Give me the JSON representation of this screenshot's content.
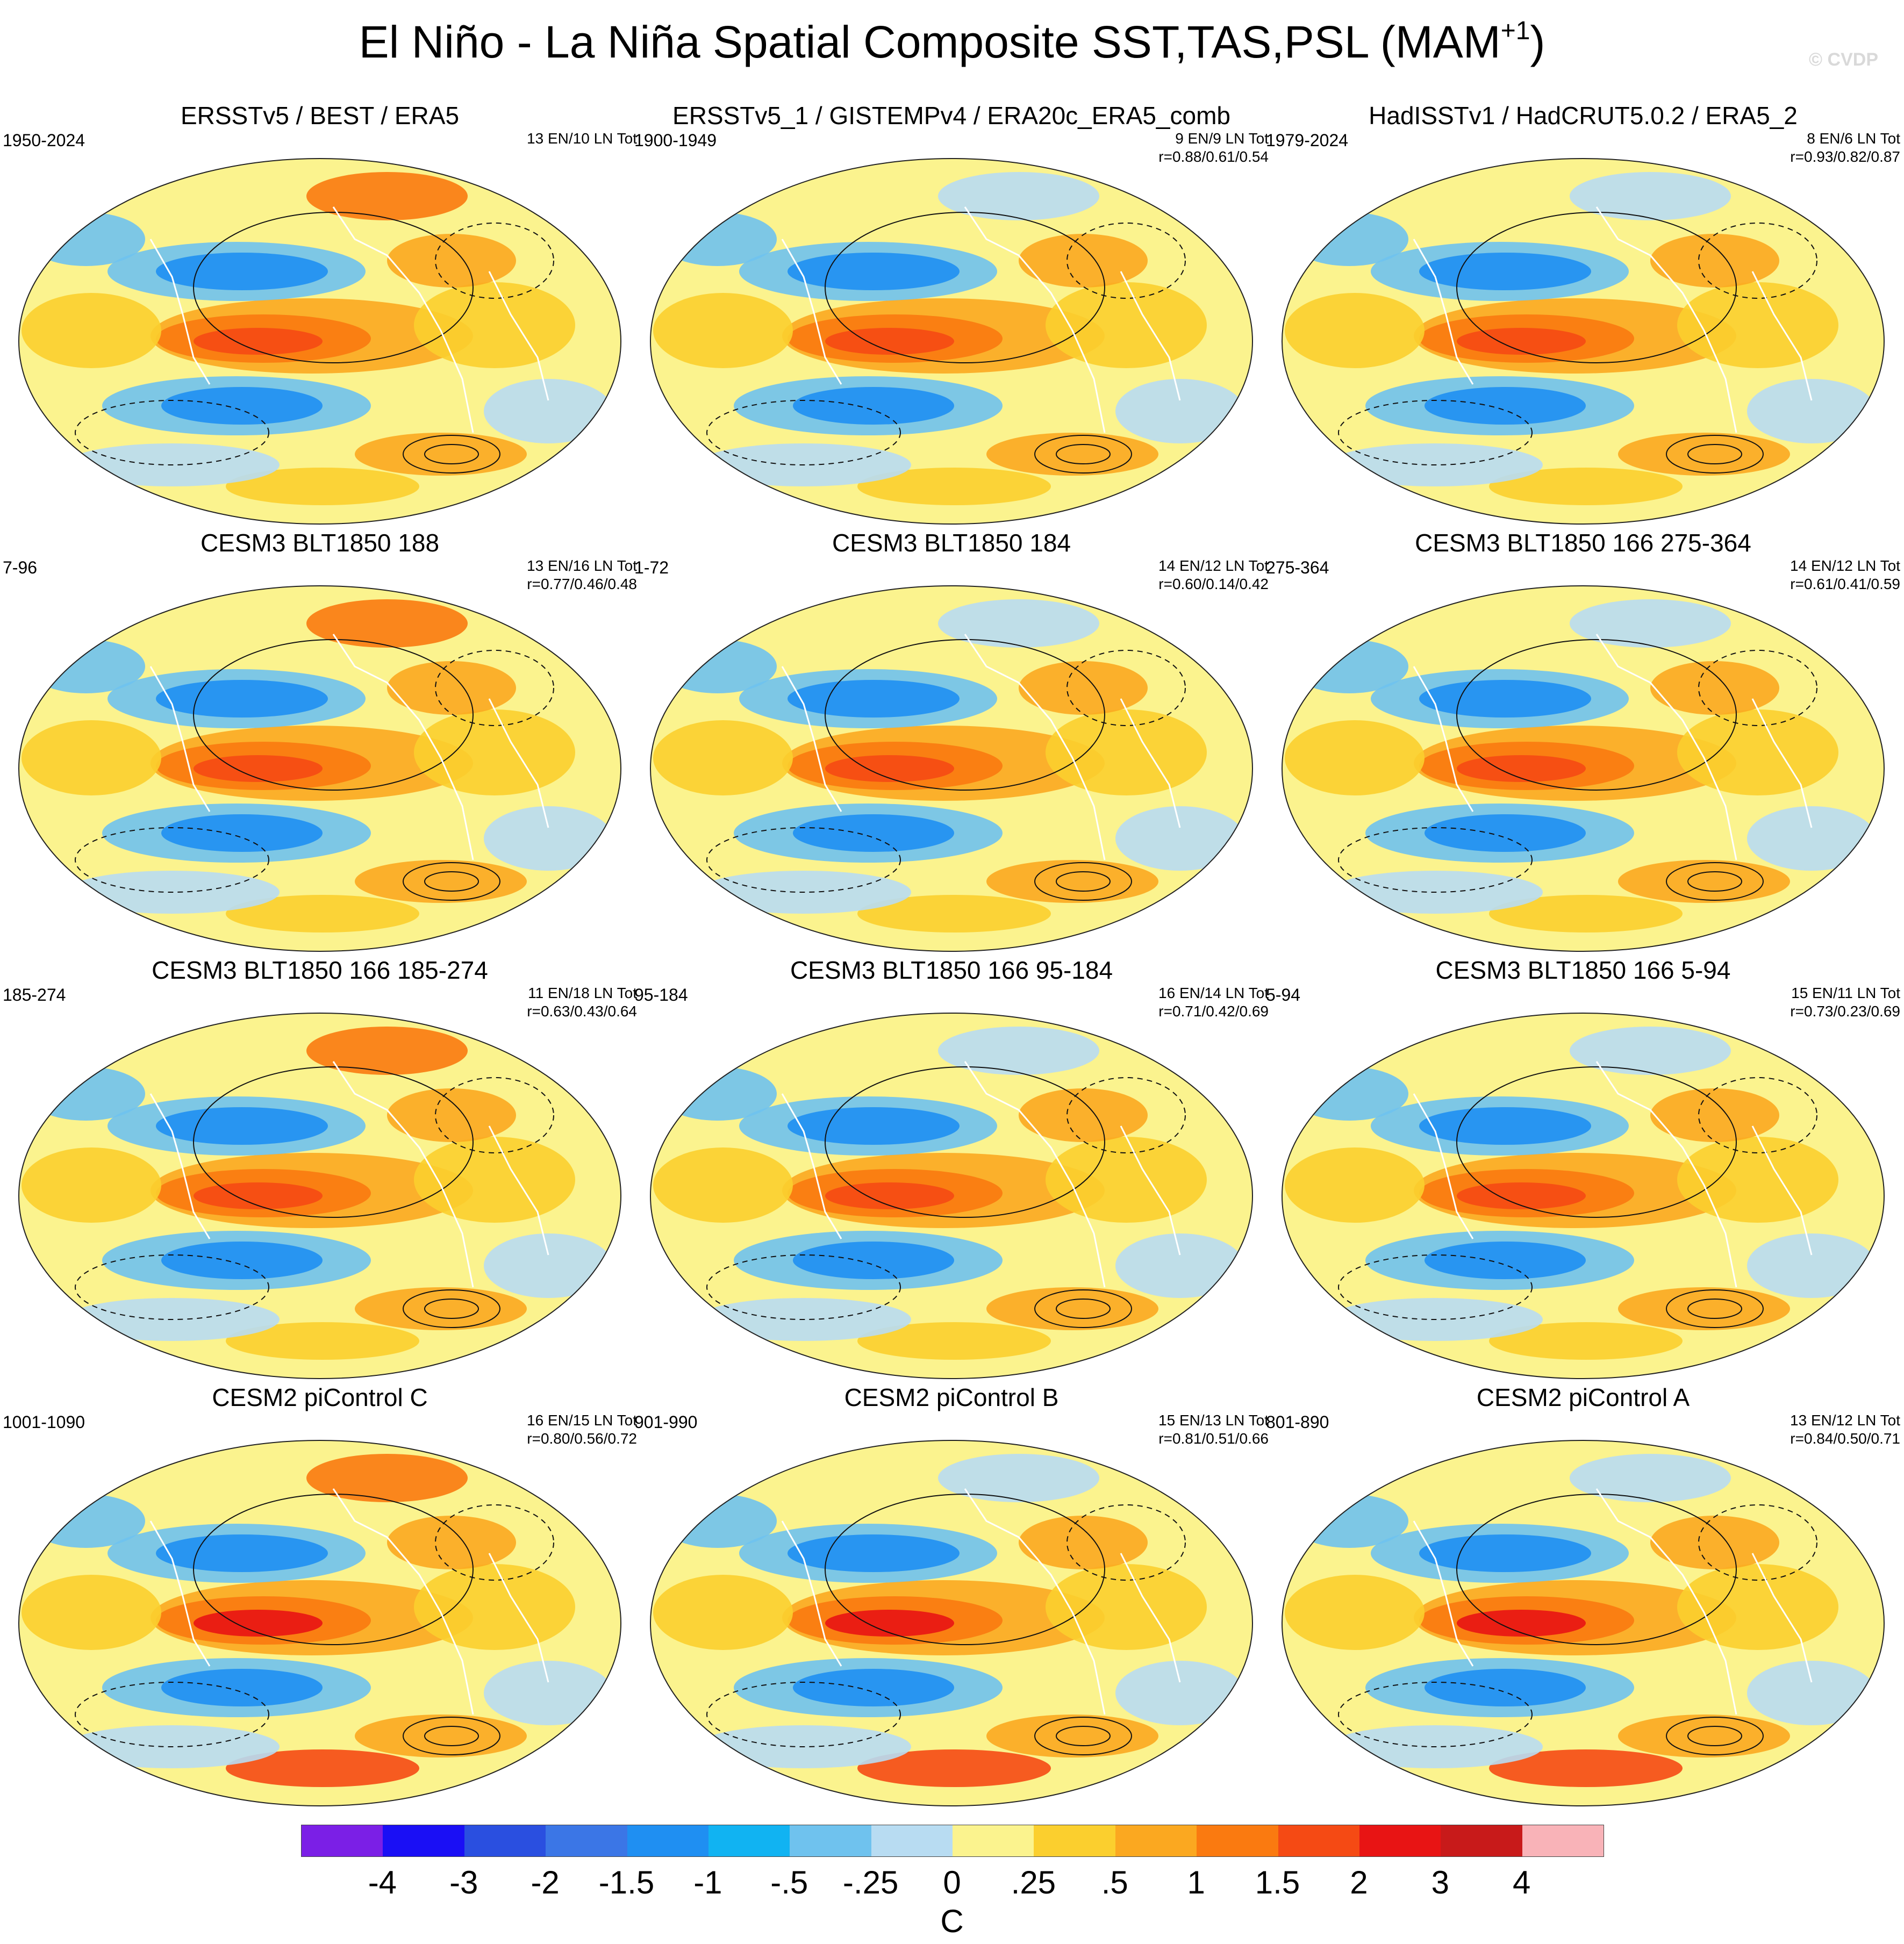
{
  "title": {
    "main": "El Niño - La Niña Spatial Composite SST,TAS,PSL (MAM",
    "sup": "+1",
    "close": ")"
  },
  "watermark": "© CVDP",
  "panels": [
    {
      "title": "ERSSTv5 / BEST / ERA5",
      "years": "1950-2024",
      "counts": "13 EN/10 LN Tot",
      "r": ""
    },
    {
      "title": "ERSSTv5_1 / GISTEMPv4 / ERA20c_ERA5_comb",
      "years": "1900-1949",
      "counts": "9 EN/9 LN Tot",
      "r": "r=0.88/0.61/0.54"
    },
    {
      "title": "HadISSTv1 / HadCRUT5.0.2 / ERA5_2",
      "years": "1979-2024",
      "counts": "8 EN/6 LN Tot",
      "r": "r=0.93/0.82/0.87"
    },
    {
      "title": "CESM3 BLT1850 188",
      "years": "7-96",
      "counts": "13 EN/16 LN Tot",
      "r": "r=0.77/0.46/0.48"
    },
    {
      "title": "CESM3 BLT1850 184",
      "years": "1-72",
      "counts": "14 EN/12 LN Tot",
      "r": "r=0.60/0.14/0.42"
    },
    {
      "title": "CESM3 BLT1850 166 275-364",
      "years": "275-364",
      "counts": "14 EN/12 LN Tot",
      "r": "r=0.61/0.41/0.59"
    },
    {
      "title": "CESM3 BLT1850 166 185-274",
      "years": "185-274",
      "counts": "11 EN/18 LN Tot",
      "r": "r=0.63/0.43/0.64"
    },
    {
      "title": "CESM3 BLT1850 166 95-184",
      "years": "95-184",
      "counts": "16 EN/14 LN Tot",
      "r": "r=0.71/0.42/0.69"
    },
    {
      "title": "CESM3 BLT1850 166 5-94",
      "years": "5-94",
      "counts": "15 EN/11 LN Tot",
      "r": "r=0.73/0.23/0.69"
    },
    {
      "title": "CESM2 piControl C",
      "years": "1001-1090",
      "counts": "16 EN/15 LN Tot",
      "r": "r=0.80/0.56/0.72"
    },
    {
      "title": "CESM2 piControl B",
      "years": "901-990",
      "counts": "15 EN/13 LN Tot",
      "r": "r=0.81/0.51/0.66"
    },
    {
      "title": "CESM2 piControl A",
      "years": "801-890",
      "counts": "13 EN/12 LN Tot",
      "r": "r=0.84/0.50/0.71"
    }
  ],
  "colorbar": {
    "colors": [
      "#7b1fe6",
      "#1a0ff5",
      "#2a4fe0",
      "#3b76e6",
      "#1f8ff2",
      "#11b3f2",
      "#6fc2ee",
      "#b8dcf2",
      "#fbf38e",
      "#fbcf2e",
      "#fba820",
      "#fa7a10",
      "#f54a14",
      "#e81414",
      "#c81a1a",
      "#f9b3b8"
    ],
    "ticks": [
      "-4",
      "-3",
      "-2",
      "-1.5",
      "-1",
      "-.5",
      "-.25",
      "0",
      ".25",
      ".5",
      "1",
      "1.5",
      "2",
      "3",
      "4"
    ],
    "unit": "C"
  }
}
